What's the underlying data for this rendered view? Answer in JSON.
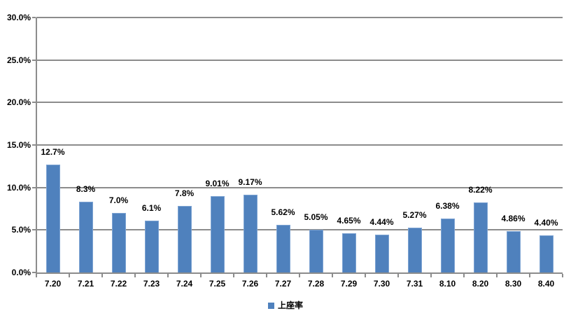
{
  "chart_data": {
    "type": "bar",
    "title": "",
    "xlabel": "",
    "ylabel": "",
    "categories": [
      "7.20",
      "7.21",
      "7.22",
      "7.23",
      "7.24",
      "7.25",
      "7.26",
      "7.27",
      "7.28",
      "7.29",
      "7.30",
      "7.31",
      "8.10",
      "8.20",
      "8.30",
      "8.40"
    ],
    "series": [
      {
        "name": "上座率",
        "values": [
          12.7,
          8.3,
          7.0,
          6.1,
          7.8,
          9.01,
          9.17,
          5.62,
          5.05,
          4.65,
          4.44,
          5.27,
          6.38,
          8.22,
          4.86,
          4.4
        ]
      }
    ],
    "data_labels": [
      "12.7%",
      "8.3%",
      "7.0%",
      "6.1%",
      "7.8%",
      "9.01%",
      "9.17%",
      "5.62%",
      "5.05%",
      "4.65%",
      "4.44%",
      "5.27%",
      "6.38%",
      "8.22%",
      "4.86%",
      "4.40%"
    ],
    "ylim": [
      0,
      30
    ],
    "ytick_step": 5,
    "ytick_labels": [
      "0.0%",
      "5.0%",
      "10.0%",
      "15.0%",
      "20.0%",
      "25.0%",
      "30.0%"
    ],
    "grid": true,
    "legend": {
      "position": "bottom",
      "entries": [
        {
          "label": "上座率",
          "swatch_color": "#4F81BD"
        }
      ]
    },
    "colors": {
      "bar": "#4F81BD",
      "bar_border": "#7EA4D3",
      "gridline": "#8C8C8C",
      "axis": "#8C8C8C",
      "text": "#000000",
      "background": "#FFFFFF"
    }
  }
}
